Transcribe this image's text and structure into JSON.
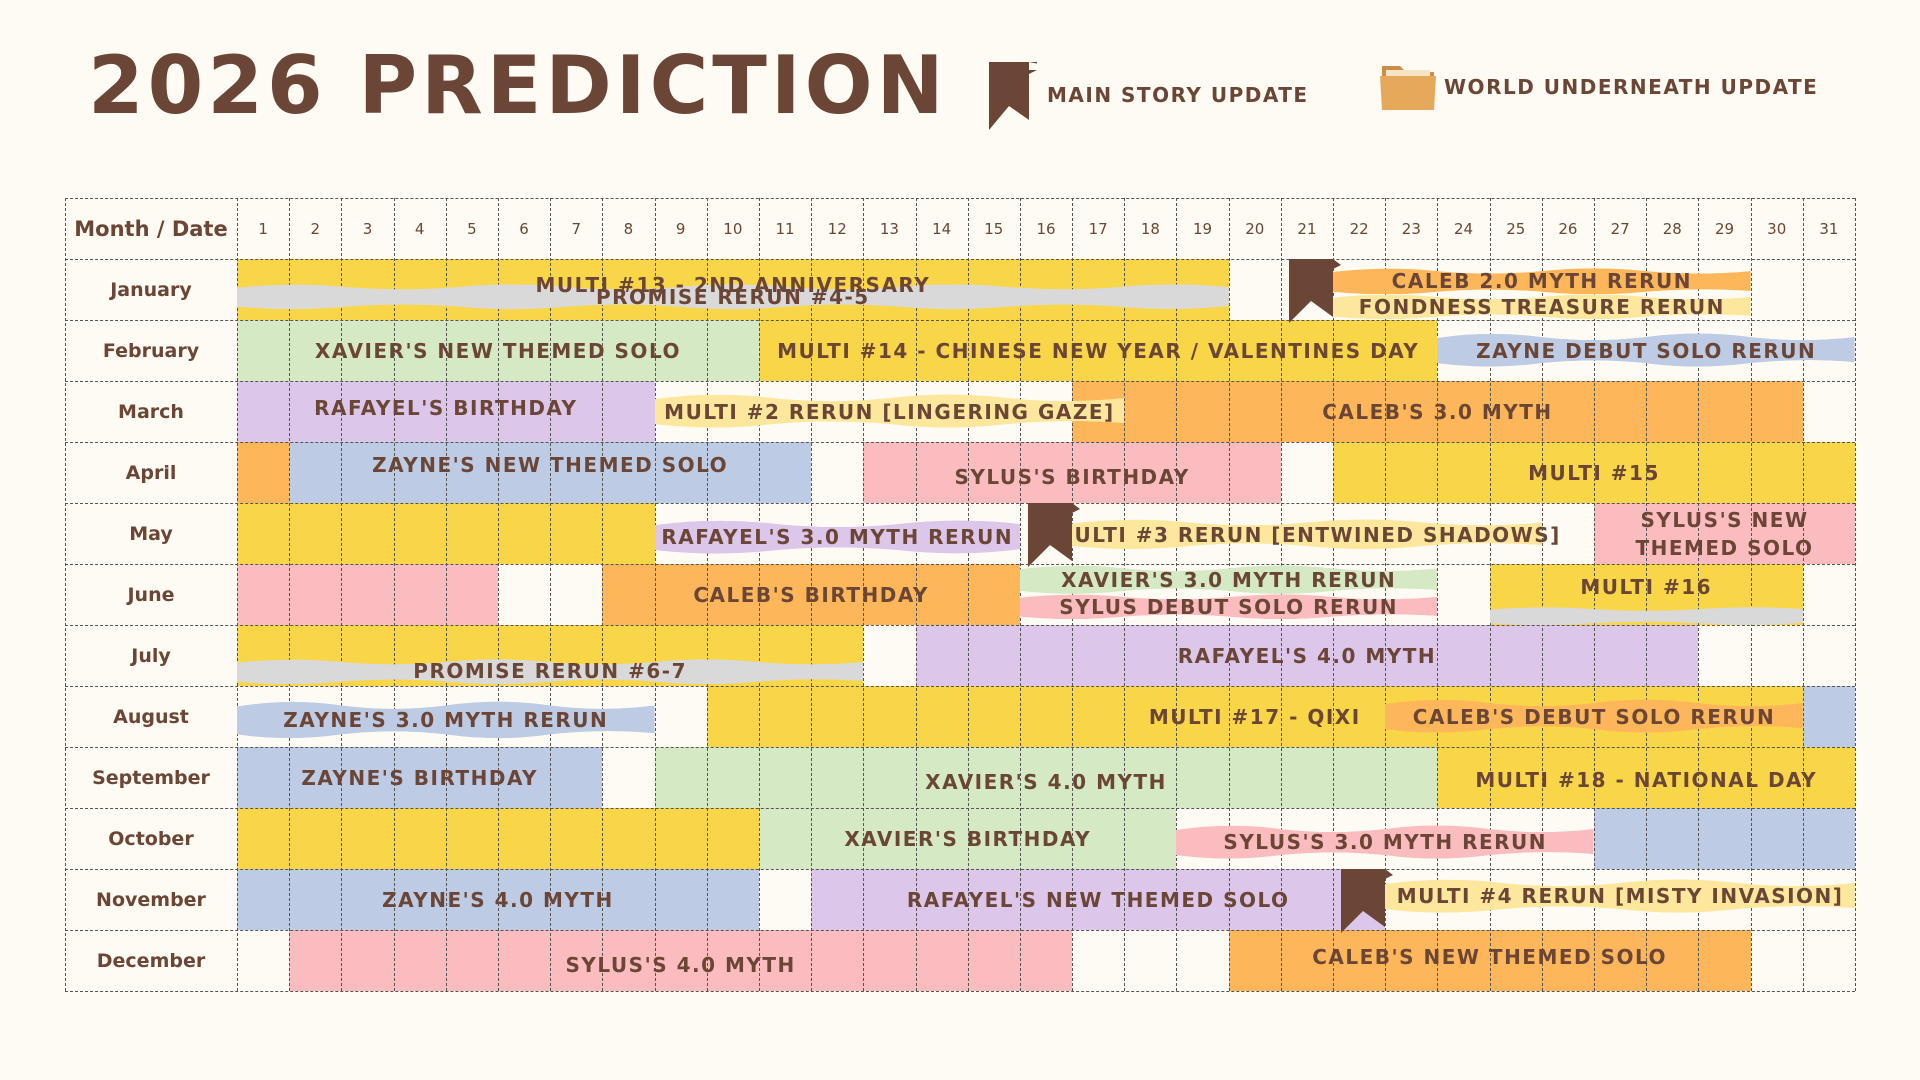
{
  "title": "2026 PREDICTION",
  "legend": [
    {
      "label": "MAIN STORY UPDATE",
      "icon": "bookmark-flag-icon",
      "color": "#6b4636"
    },
    {
      "label": "WORLD UNDERNEATH UPDATE",
      "icon": "folder-icon",
      "color": "#e6a95c"
    }
  ],
  "header": "Month / Date",
  "days": [
    "1",
    "2",
    "3",
    "4",
    "5",
    "6",
    "7",
    "8",
    "9",
    "10",
    "11",
    "12",
    "13",
    "14",
    "15",
    "16",
    "17",
    "18",
    "19",
    "20",
    "21",
    "22",
    "23",
    "24",
    "25",
    "26",
    "27",
    "28",
    "29",
    "30",
    "31"
  ],
  "months": [
    "January",
    "February",
    "March",
    "April",
    "May",
    "June",
    "July",
    "August",
    "September",
    "October",
    "November",
    "December"
  ],
  "colors": {
    "yellow": "#f9d648",
    "gray": "#d9d9d9",
    "orange": "#fdb75a",
    "lightyellow": "#fde79c",
    "green": "#d5e9c4",
    "blue": "#bdcce4",
    "purple": "#dcc6ea",
    "pink": "#fbbcc0",
    "brown": "#6b4636"
  },
  "events": [
    {
      "m": 0,
      "s": 1,
      "e": 19,
      "c": "yellow",
      "t": "MULTI #13 - 2ND ANNIVERSARY",
      "ty": -5
    },
    {
      "m": 0,
      "s": 1,
      "e": 19,
      "c": "gray",
      "t": "PROMISE RERUN #4-5",
      "style": "ribbon",
      "y": 0.62,
      "h": 0.42
    },
    {
      "m": 0,
      "s": 22,
      "e": 29,
      "c": "orange",
      "t": "CALEB 2.0 MYTH RERUN",
      "style": "ribbon",
      "y": 0.36,
      "h": 0.44
    },
    {
      "m": 0,
      "s": 22,
      "e": 29,
      "c": "lightyellow",
      "t": "FONDNESS TREASURE RERUN",
      "style": "ribbon",
      "y": 0.78,
      "h": 0.42
    },
    {
      "m": 1,
      "s": 1,
      "e": 10,
      "c": "green",
      "t": "XAVIER'S NEW THEMED SOLO"
    },
    {
      "m": 1,
      "s": 11,
      "e": 23,
      "c": "yellow",
      "t": "MULTI #14 - CHINESE NEW YEAR / VALENTINES DAY"
    },
    {
      "m": 1,
      "s": 24,
      "e": 31,
      "c": "blue",
      "t": "ZAYNE DEBUT SOLO RERUN",
      "style": "ribbon",
      "y": 0.5,
      "h": 0.56
    },
    {
      "m": 2,
      "s": 1,
      "e": 8,
      "c": "purple",
      "t": "RAFAYEL'S BIRTHDAY",
      "ty": -4
    },
    {
      "m": 2,
      "s": 17,
      "e": 30,
      "c": "orange",
      "t": "CALEB'S 3.0 MYTH"
    },
    {
      "m": 2,
      "s": 9,
      "e": 17,
      "c": "lightyellow",
      "t": "MULTI #2 RERUN [LINGERING GAZE]",
      "style": "ribbon",
      "y": 0.5,
      "h": 0.56
    },
    {
      "m": 3,
      "s": 1,
      "e": 1,
      "c": "orange",
      "t": ""
    },
    {
      "m": 3,
      "s": 2,
      "e": 11,
      "c": "blue",
      "t": "ZAYNE'S NEW THEMED SOLO",
      "ty": -8
    },
    {
      "m": 3,
      "s": 13,
      "e": 20,
      "c": "pink",
      "t": "SYLUS'S BIRTHDAY",
      "ty": 4
    },
    {
      "m": 3,
      "s": 22,
      "e": 31,
      "c": "yellow",
      "t": "MULTI #15"
    },
    {
      "m": 4,
      "s": 1,
      "e": 8,
      "c": "yellow",
      "t": ""
    },
    {
      "m": 4,
      "s": 9,
      "e": 15,
      "c": "purple",
      "t": "RAFAYEL'S 3.0 MYTH RERUN",
      "style": "ribbon",
      "y": 0.56,
      "h": 0.56
    },
    {
      "m": 4,
      "s": 17,
      "e": 25,
      "c": "lightyellow",
      "t": "MULTI #3 RERUN [ENTWINED SHADOWS]",
      "style": "ribbon",
      "y": 0.52,
      "h": 0.5
    },
    {
      "m": 4,
      "s": 27,
      "e": 31,
      "c": "pink",
      "t": "SYLUS'S NEW",
      "ty": -14
    },
    {
      "m": 4,
      "s": 27,
      "e": 31,
      "c": "pink",
      "t": "THEMED SOLO",
      "ty": 14,
      "nobg": true
    },
    {
      "m": 5,
      "s": 1,
      "e": 5,
      "c": "pink",
      "t": ""
    },
    {
      "m": 5,
      "s": 8,
      "e": 15,
      "c": "orange",
      "t": "CALEB'S BIRTHDAY"
    },
    {
      "m": 5,
      "s": 16,
      "e": 23,
      "c": "green",
      "t": "XAVIER'S 3.0 MYTH RERUN",
      "style": "ribbon",
      "y": 0.26,
      "h": 0.48
    },
    {
      "m": 5,
      "s": 16,
      "e": 23,
      "c": "pink",
      "t": "SYLUS DEBUT SOLO RERUN",
      "style": "ribbon",
      "y": 0.7,
      "h": 0.42
    },
    {
      "m": 5,
      "s": 25,
      "e": 30,
      "c": "yellow",
      "t": "MULTI #16",
      "ty": -8
    },
    {
      "m": 5,
      "s": 25,
      "e": 30,
      "c": "gray",
      "t": "",
      "style": "ribbon",
      "y": 0.86,
      "h": 0.3
    },
    {
      "m": 6,
      "s": 1,
      "e": 12,
      "c": "yellow",
      "t": ""
    },
    {
      "m": 6,
      "s": 1,
      "e": 12,
      "c": "gray",
      "t": "PROMISE RERUN #6-7",
      "style": "ribbon",
      "y": 0.76,
      "h": 0.42
    },
    {
      "m": 6,
      "s": 14,
      "e": 28,
      "c": "purple",
      "t": "RAFAYEL'S 4.0 MYTH"
    },
    {
      "m": 7,
      "s": 1,
      "e": 8,
      "c": "blue",
      "t": "ZAYNE'S 3.0 MYTH RERUN",
      "style": "ribbon",
      "y": 0.56,
      "h": 0.62
    },
    {
      "m": 7,
      "s": 10,
      "e": 30,
      "c": "yellow",
      "t": "MULTI #17 - QIXI"
    },
    {
      "m": 7,
      "s": 31,
      "e": 31,
      "c": "blue",
      "t": ""
    },
    {
      "m": 7,
      "s": 23,
      "e": 30,
      "c": "orange",
      "t": "CALEB'S DEBUT SOLO RERUN",
      "style": "ribbon",
      "y": 0.5,
      "h": 0.56
    },
    {
      "m": 8,
      "s": 1,
      "e": 7,
      "c": "blue",
      "t": "ZAYNE'S BIRTHDAY"
    },
    {
      "m": 8,
      "s": 9,
      "e": 23,
      "c": "green",
      "t": "XAVIER'S 4.0 MYTH",
      "ty": 4
    },
    {
      "m": 8,
      "s": 24,
      "e": 31,
      "c": "yellow",
      "t": "MULTI #18 - NATIONAL DAY",
      "ty": 2
    },
    {
      "m": 9,
      "s": 1,
      "e": 10,
      "c": "yellow",
      "t": ""
    },
    {
      "m": 9,
      "s": 11,
      "e": 18,
      "c": "green",
      "t": "XAVIER'S BIRTHDAY"
    },
    {
      "m": 9,
      "s": 27,
      "e": 31,
      "c": "blue",
      "t": ""
    },
    {
      "m": 9,
      "s": 19,
      "e": 26,
      "c": "pink",
      "t": "SYLUS'S 3.0 MYTH RERUN",
      "style": "ribbon",
      "y": 0.56,
      "h": 0.56
    },
    {
      "m": 10,
      "s": 1,
      "e": 10,
      "c": "blue",
      "t": "ZAYNE'S 4.0 MYTH"
    },
    {
      "m": 10,
      "s": 12,
      "e": 22,
      "c": "purple",
      "t": "RAFAYEL'S NEW THEMED SOLO"
    },
    {
      "m": 10,
      "s": 23,
      "e": 31,
      "c": "lightyellow",
      "t": "MULTI #4 RERUN [MISTY INVASION]",
      "style": "ribbon",
      "y": 0.44,
      "h": 0.56
    },
    {
      "m": 11,
      "s": 2,
      "e": 16,
      "c": "pink",
      "t": "SYLUS'S 4.0 MYTH",
      "ty": 4
    },
    {
      "m": 11,
      "s": 20,
      "e": 29,
      "c": "orange",
      "t": "CALEB'S NEW THEMED SOLO",
      "ty": -4
    }
  ],
  "flags": [
    {
      "m": 0,
      "d": 21
    },
    {
      "m": 4,
      "d": 16
    },
    {
      "m": 10,
      "d": 22
    }
  ]
}
